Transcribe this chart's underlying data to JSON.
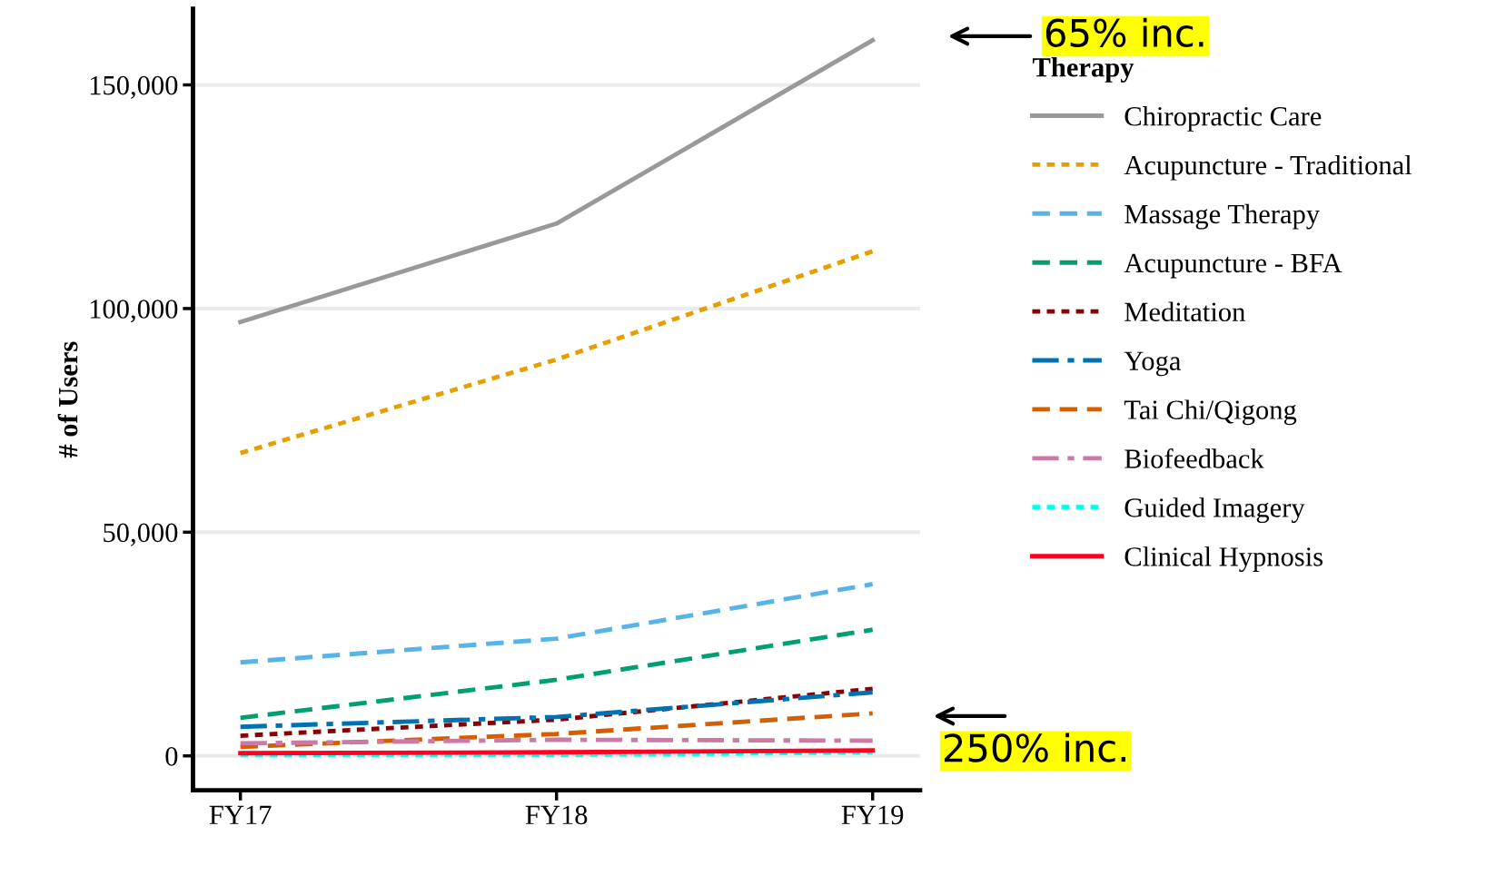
{
  "chart_data": {
    "type": "line",
    "ylabel": "# of Users",
    "legend_title": "Therapy",
    "legend": "right",
    "categories": [
      "FY17",
      "FY18",
      "FY19"
    ],
    "series": [
      {
        "name": "Chiropractic Care",
        "color": "#999999",
        "line_style": "solid",
        "values": [
          97000,
          119000,
          160000
        ]
      },
      {
        "name": "Acupuncture - Traditional",
        "color": "#E69F00",
        "line_style": "dotted",
        "values": [
          67700,
          88600,
          112800
        ]
      },
      {
        "name": "Massage Therapy",
        "color": "#56B4E9",
        "line_style": "dashed",
        "values": [
          20900,
          26200,
          38400
        ]
      },
      {
        "name": "Acupuncture - BFA",
        "color": "#009E73",
        "line_style": "dashed",
        "values": [
          8500,
          17000,
          28200
        ]
      },
      {
        "name": "Meditation",
        "color": "#8B0000",
        "line_style": "dotted",
        "values": [
          4500,
          8100,
          15000
        ]
      },
      {
        "name": "Yoga",
        "color": "#0072B2",
        "line_style": "dashdot",
        "values": [
          6500,
          8700,
          14200
        ]
      },
      {
        "name": "Tai Chi/Qigong",
        "color": "#D55E00",
        "line_style": "dashed",
        "values": [
          2000,
          4900,
          9500
        ]
      },
      {
        "name": "Biofeedback",
        "color": "#CC79A7",
        "line_style": "dashdot",
        "values": [
          2800,
          3600,
          3400
        ]
      },
      {
        "name": "Guided Imagery",
        "color": "#00FFEE",
        "line_style": "dotted",
        "values": [
          200,
          200,
          800
        ]
      },
      {
        "name": "Clinical Hypnosis",
        "color": "#FF0022",
        "line_style": "solid",
        "values": [
          600,
          800,
          1200
        ]
      }
    ],
    "ylim": [
      -7700,
      167000
    ],
    "yticks": [
      {
        "value": 0,
        "label": "0"
      },
      {
        "value": 50000,
        "label": "50,000"
      },
      {
        "value": 100000,
        "label": "100,000"
      },
      {
        "value": 150000,
        "label": "150,000"
      }
    ],
    "grid": "y",
    "annotations": [
      "65% inc.",
      "250% inc."
    ]
  }
}
